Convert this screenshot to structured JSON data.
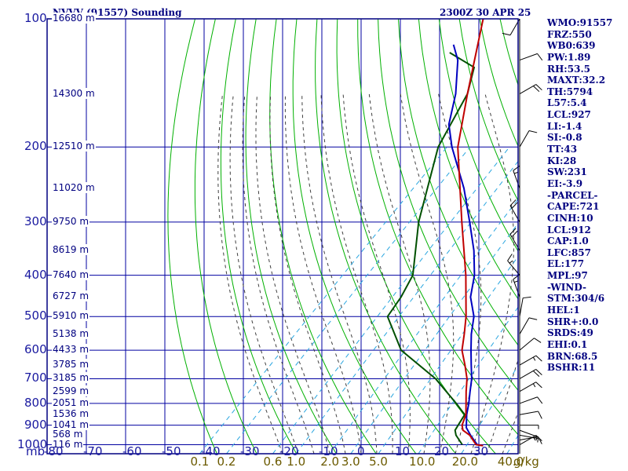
{
  "header": {
    "station_title": "NVVV (91557) Sounding",
    "valid_time": "2300Z 30 APR 25"
  },
  "indices": [
    "WMO:91557",
    "FRZ:550",
    "WB0:639",
    "PW:1.89",
    "RH:53.5",
    "MAXT:32.2",
    "TH:5794",
    "L57:5.4",
    "LCL:927",
    "LI:-1.4",
    "SI:-0.8",
    "TT:43",
    "KI:28",
    "SW:231",
    "EI:-3.9",
    "-PARCEL-",
    "CAPE:721",
    "CINH:10",
    "LCL:912",
    "CAP:1.0",
    "LFC:857",
    "EL:177",
    "MPL:97",
    "-WIND-",
    "STM:304/6",
    "HEL:1",
    "SHR+:0.0",
    "SRDS:49",
    "EHI:0.1",
    "BRN:68.5",
    "BSHR:11"
  ],
  "colors": {
    "frame": "#000080",
    "grid": "#0000a0",
    "dry_adiabat": "#00b000",
    "moist_adiabat": "#404040",
    "mixing_ratio": "#2aa6e0",
    "temperature": "#c00000",
    "parcel": "#0000c0",
    "dewpoint": "#005000",
    "wind": "#000000"
  },
  "chart_data": {
    "type": "skew-t",
    "y_unit_label": "mb",
    "x_unit_label": "g/kg",
    "pressure_ticks": [
      100,
      200,
      300,
      400,
      500,
      600,
      700,
      800,
      900,
      1000
    ],
    "temperature_ticks": [
      -80,
      -70,
      -60,
      -50,
      -40,
      -30,
      -20,
      -10,
      0,
      10,
      20,
      30
    ],
    "mixing_ratio_labels": [
      "0.1",
      "0.2",
      "0.6",
      "1.0",
      "2.0",
      "3.0",
      "5.0",
      "10.0",
      "20.0",
      "40.0"
    ],
    "height_labels": [
      {
        "p": 100,
        "text": "16680 m"
      },
      {
        "p": 150,
        "text": "14300 m"
      },
      {
        "p": 200,
        "text": "12510 m"
      },
      {
        "p": 250,
        "text": "11020 m"
      },
      {
        "p": 300,
        "text": "9750 m"
      },
      {
        "p": 350,
        "text": "8619 m"
      },
      {
        "p": 400,
        "text": "7640 m"
      },
      {
        "p": 450,
        "text": "6727 m"
      },
      {
        "p": 500,
        "text": "5910 m"
      },
      {
        "p": 550,
        "text": "5138 m"
      },
      {
        "p": 600,
        "text": "4433 m"
      },
      {
        "p": 650,
        "text": "3785 m"
      },
      {
        "p": 700,
        "text": "3185 m"
      },
      {
        "p": 750,
        "text": "2599 m"
      },
      {
        "p": 800,
        "text": "2051 m"
      },
      {
        "p": 850,
        "text": "1536 m"
      },
      {
        "p": 900,
        "text": "1041 m"
      },
      {
        "p": 950,
        "text": "568 m"
      },
      {
        "p": 1000,
        "text": "116 m"
      }
    ],
    "temperature": [
      {
        "p": 1005,
        "t": 29.0
      },
      {
        "p": 1000,
        "t": 27.0
      },
      {
        "p": 950,
        "t": 23.0
      },
      {
        "p": 925,
        "t": 20.0
      },
      {
        "p": 900,
        "t": 18.5
      },
      {
        "p": 850,
        "t": 16.8
      },
      {
        "p": 800,
        "t": 14.0
      },
      {
        "p": 750,
        "t": 11.0
      },
      {
        "p": 700,
        "t": 8.0
      },
      {
        "p": 650,
        "t": 4.0
      },
      {
        "p": 600,
        "t": -0.5
      },
      {
        "p": 550,
        "t": -4.0
      },
      {
        "p": 500,
        "t": -8.0
      },
      {
        "p": 400,
        "t": -18.5
      },
      {
        "p": 300,
        "t": -33.0
      },
      {
        "p": 250,
        "t": -42.0
      },
      {
        "p": 200,
        "t": -53.0
      },
      {
        "p": 150,
        "t": -64.0
      },
      {
        "p": 100,
        "t": -79.0
      }
    ],
    "parcel": [
      {
        "p": 1005,
        "t": 29.0
      },
      {
        "p": 1000,
        "t": 27.3
      },
      {
        "p": 950,
        "t": 23.2
      },
      {
        "p": 912,
        "t": 20.2
      },
      {
        "p": 850,
        "t": 17.0
      },
      {
        "p": 800,
        "t": 14.7
      },
      {
        "p": 750,
        "t": 12.0
      },
      {
        "p": 700,
        "t": 9.2
      },
      {
        "p": 650,
        "t": 5.6
      },
      {
        "p": 600,
        "t": 1.8
      },
      {
        "p": 550,
        "t": -2.2
      },
      {
        "p": 500,
        "t": -6.0
      },
      {
        "p": 450,
        "t": -11.8
      },
      {
        "p": 400,
        "t": -16.3
      },
      {
        "p": 350,
        "t": -22.7
      },
      {
        "p": 300,
        "t": -31.0
      },
      {
        "p": 250,
        "t": -41.0
      },
      {
        "p": 200,
        "t": -54.5
      },
      {
        "p": 177,
        "t": -61.0
      },
      {
        "p": 150,
        "t": -67.0
      },
      {
        "p": 125,
        "t": -75.0
      },
      {
        "p": 115,
        "t": -80.0
      }
    ],
    "dewpoint": [
      {
        "p": 1000,
        "t": 23.5
      },
      {
        "p": 950,
        "t": 19.5
      },
      {
        "p": 925,
        "t": 18.0
      },
      {
        "p": 900,
        "t": 17.5
      },
      {
        "p": 850,
        "t": 16.5
      },
      {
        "p": 800,
        "t": 11.5
      },
      {
        "p": 700,
        "t": 0.0
      },
      {
        "p": 600,
        "t": -16.0
      },
      {
        "p": 500,
        "t": -28.0
      },
      {
        "p": 450,
        "t": -29.5
      },
      {
        "p": 400,
        "t": -32.0
      },
      {
        "p": 300,
        "t": -44.0
      },
      {
        "p": 200,
        "t": -58.0
      },
      {
        "p": 150,
        "t": -64.0
      },
      {
        "p": 130,
        "t": -69.0
      },
      {
        "p": 120,
        "t": -79.0
      }
    ],
    "wind_barbs": [
      {
        "p": 1000,
        "dir": 60,
        "spd": 15
      },
      {
        "p": 975,
        "dir": 80,
        "spd": 10
      },
      {
        "p": 950,
        "dir": 100,
        "spd": 5
      },
      {
        "p": 925,
        "dir": 110,
        "spd": 5
      },
      {
        "p": 900,
        "dir": 90,
        "spd": 5
      },
      {
        "p": 850,
        "dir": 80,
        "spd": 10
      },
      {
        "p": 800,
        "dir": 70,
        "spd": 10
      },
      {
        "p": 750,
        "dir": 60,
        "spd": 15
      },
      {
        "p": 700,
        "dir": 60,
        "spd": 20
      },
      {
        "p": 650,
        "dir": 60,
        "spd": 15
      },
      {
        "p": 600,
        "dir": 50,
        "spd": 10
      },
      {
        "p": 550,
        "dir": 30,
        "spd": 10
      },
      {
        "p": 500,
        "dir": 10,
        "spd": 10
      },
      {
        "p": 450,
        "dir": 340,
        "spd": 15
      },
      {
        "p": 400,
        "dir": 320,
        "spd": 15
      },
      {
        "p": 350,
        "dir": 330,
        "spd": 20
      },
      {
        "p": 300,
        "dir": 330,
        "spd": 20
      },
      {
        "p": 250,
        "dir": 340,
        "spd": 15
      },
      {
        "p": 200,
        "dir": 30,
        "spd": 10
      },
      {
        "p": 150,
        "dir": 60,
        "spd": 20
      },
      {
        "p": 125,
        "dir": 70,
        "spd": 10
      },
      {
        "p": 100,
        "dir": 210,
        "spd": 10
      }
    ]
  }
}
